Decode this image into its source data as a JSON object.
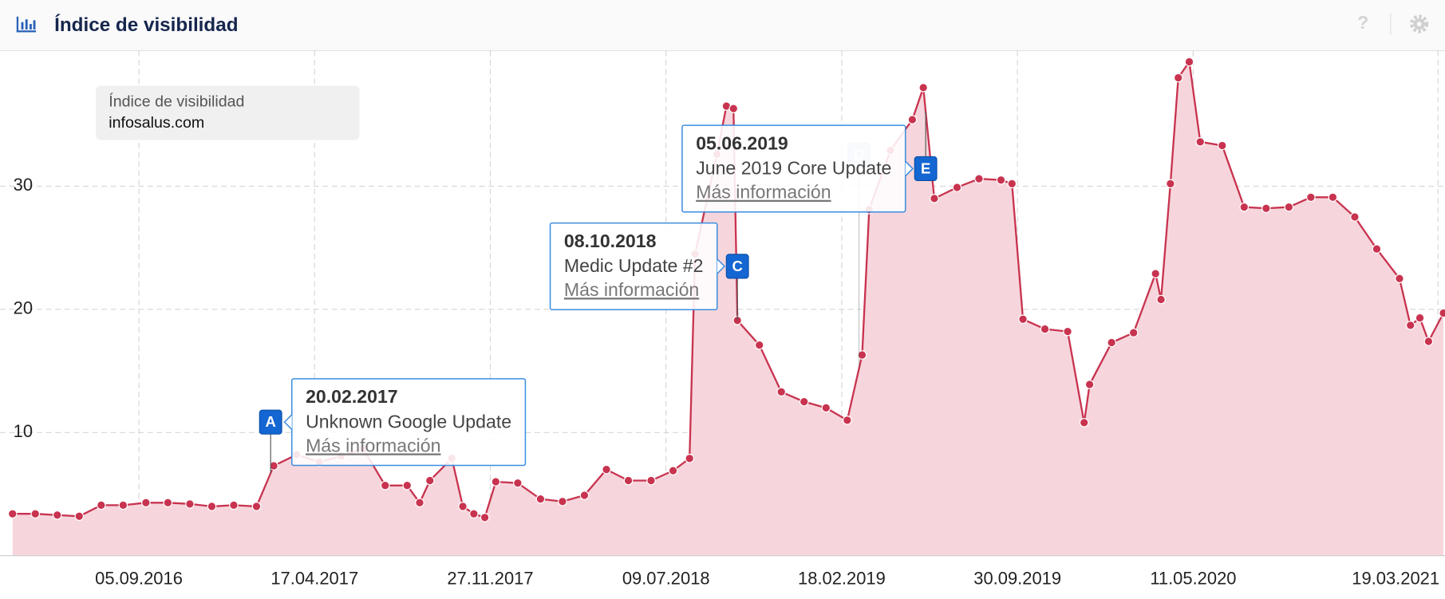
{
  "header": {
    "title": "Índice de visibilidad",
    "help": "?"
  },
  "chart_data": {
    "type": "area",
    "legend": {
      "title": "Índice de visibilidad"
    },
    "series": [
      {
        "name": "infosalus.com",
        "color": "#c8334f",
        "fill_color": "#f6d6dc",
        "values": [
          3.4,
          3.4,
          3.3,
          3.2,
          4.1,
          4.1,
          4.3,
          4.3,
          4.2,
          4.0,
          4.1,
          4.0,
          7.3,
          8.2,
          7.6,
          8.1,
          8.7,
          5.7,
          5.7,
          4.3,
          6.1,
          7.9,
          4.0,
          3.4,
          3.1,
          6.0,
          5.9,
          4.6,
          4.4,
          4.9,
          7.0,
          6.1,
          6.1,
          6.9,
          7.9,
          24.5,
          32.6,
          36.5,
          36.3,
          19.1,
          17.1,
          13.3,
          12.5,
          12.0,
          11.0,
          16.3,
          28.1,
          32.9,
          35.4,
          38.0,
          29.0,
          29.9,
          30.6,
          30.5,
          30.2,
          19.2,
          18.4,
          18.2,
          10.8,
          13.9,
          17.3,
          18.1,
          22.9,
          20.8,
          30.2,
          38.8,
          40.1,
          33.6,
          33.3,
          28.3,
          28.2,
          28.3,
          29.1,
          29.1,
          27.5,
          24.9,
          22.5,
          18.7,
          19.3,
          17.4,
          19.7
        ]
      }
    ],
    "x": [
      "2016-03-28",
      "2016-04-26",
      "2016-05-24",
      "2016-06-21",
      "2016-07-19",
      "2016-08-16",
      "2016-09-14",
      "2016-10-12",
      "2016-11-09",
      "2016-12-07",
      "2017-01-04",
      "2017-02-02",
      "2017-02-24",
      "2017-03-25",
      "2017-04-23",
      "2017-05-21",
      "2017-06-18",
      "2017-07-16",
      "2017-08-13",
      "2017-08-29",
      "2017-09-11",
      "2017-10-09",
      "2017-10-23",
      "2017-11-06",
      "2017-11-20",
      "2017-12-04",
      "2018-01-01",
      "2018-01-30",
      "2018-02-27",
      "2018-03-27",
      "2018-04-24",
      "2018-05-22",
      "2018-06-20",
      "2018-07-18",
      "2018-08-08",
      "2018-08-15",
      "2018-09-12",
      "2018-09-24",
      "2018-10-03",
      "2018-10-08",
      "2018-11-05",
      "2018-12-03",
      "2019-01-01",
      "2019-01-29",
      "2019-02-25",
      "2019-03-16",
      "2019-03-25",
      "2019-04-21",
      "2019-05-19",
      "2019-06-02",
      "2019-06-16",
      "2019-07-15",
      "2019-08-12",
      "2019-09-09",
      "2019-09-23",
      "2019-10-07",
      "2019-11-04",
      "2019-12-03",
      "2019-12-24",
      "2019-12-31",
      "2020-01-28",
      "2020-02-25",
      "2020-03-24",
      "2020-03-31",
      "2020-04-12",
      "2020-04-22",
      "2020-05-06",
      "2020-05-20",
      "2020-06-17",
      "2020-07-15",
      "2020-08-12",
      "2020-09-10",
      "2020-10-08",
      "2020-11-05",
      "2020-12-03",
      "2020-12-31",
      "2021-01-29",
      "2021-02-12",
      "2021-02-24",
      "2021-03-07",
      "2021-03-26"
    ],
    "xlim": [
      "2016-03-12",
      "2021-03-28"
    ],
    "xticks": [
      {
        "value": "2016-09-05",
        "label": "05.09.2016"
      },
      {
        "value": "2017-04-17",
        "label": "17.04.2017"
      },
      {
        "value": "2017-11-27",
        "label": "27.11.2017"
      },
      {
        "value": "2018-07-09",
        "label": "09.07.2018"
      },
      {
        "value": "2019-02-18",
        "label": "18.02.2019"
      },
      {
        "value": "2019-09-30",
        "label": "30.09.2019"
      },
      {
        "value": "2020-05-11",
        "label": "11.05.2020"
      },
      {
        "value": "2021-03-19",
        "label": "19.03.2021"
      }
    ],
    "ylim": [
      0,
      41
    ],
    "yticks": [
      10,
      20,
      30
    ],
    "grid": true,
    "annotations": [
      {
        "letter": "A",
        "x": "2017-02-20",
        "date": "20.02.2017",
        "text": "Unknown Google Update",
        "link": "Más información"
      },
      {
        "letter": "C",
        "x": "2018-10-08",
        "date": "08.10.2018",
        "text": "Medic Update #2",
        "link": "Más información"
      },
      {
        "letter": "D",
        "x": "2019-03-12"
      },
      {
        "letter": "E",
        "x": "2019-06-05",
        "date": "05.06.2019",
        "text": "June 2019 Core Update",
        "link": "Más información"
      }
    ]
  }
}
